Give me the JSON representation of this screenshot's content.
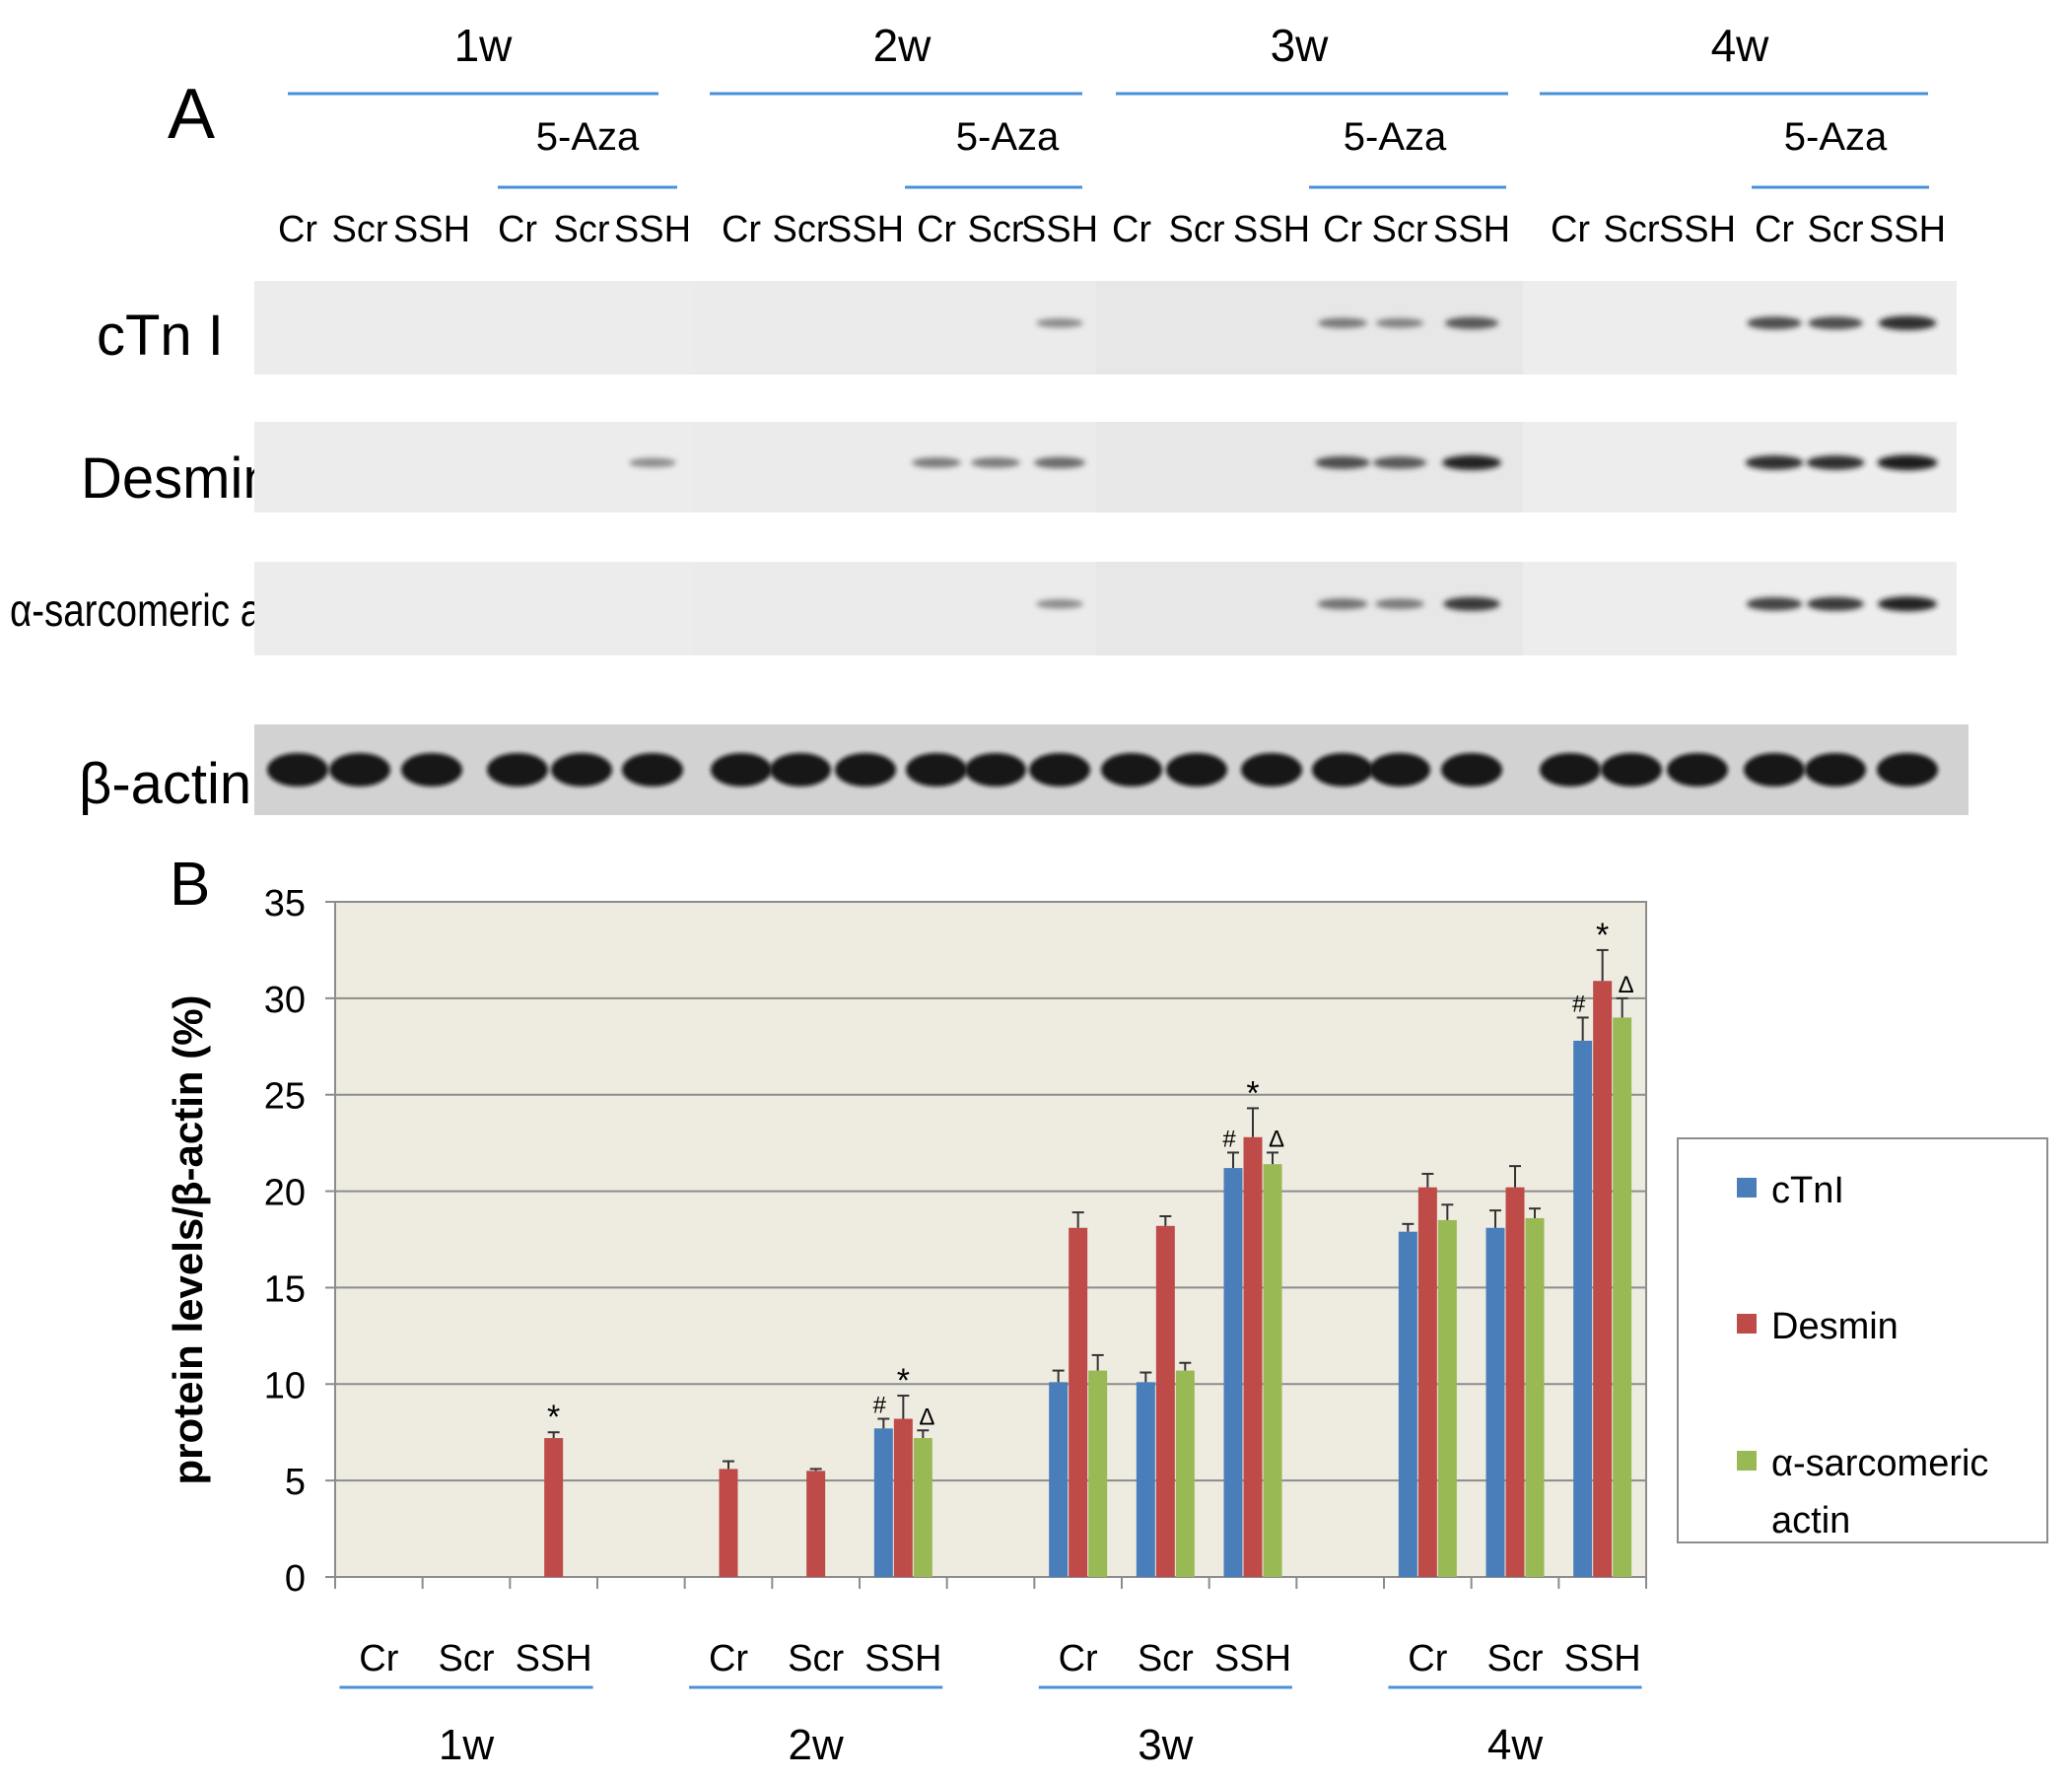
{
  "panel_a": {
    "label": "A",
    "weeks": [
      "1w",
      "2w",
      "3w",
      "4w"
    ],
    "treatment": "5-Aza",
    "lanes": [
      "Cr",
      "Scr",
      "SSH"
    ],
    "blots": [
      {
        "name": "cTn I",
        "intensity": [
          [
            0,
            0,
            0,
            0,
            0,
            0
          ],
          [
            0,
            0,
            0,
            0,
            0,
            0.35
          ],
          [
            0,
            0,
            0,
            0.45,
            0.4,
            0.65
          ],
          [
            0,
            0,
            0,
            0.7,
            0.7,
            0.85
          ]
        ]
      },
      {
        "name": "Desmin",
        "intensity": [
          [
            0,
            0,
            0,
            0,
            0,
            0.35
          ],
          [
            0,
            0,
            0,
            0.45,
            0.45,
            0.55
          ],
          [
            0,
            0,
            0,
            0.7,
            0.65,
            0.9
          ],
          [
            0,
            0,
            0,
            0.85,
            0.85,
            0.95
          ]
        ]
      },
      {
        "name": "α-sarcomeric actin",
        "intensity": [
          [
            0,
            0,
            0,
            0,
            0,
            0
          ],
          [
            0,
            0,
            0,
            0,
            0,
            0.35
          ],
          [
            0,
            0,
            0,
            0.5,
            0.45,
            0.8
          ],
          [
            0,
            0,
            0,
            0.75,
            0.8,
            0.9
          ]
        ]
      },
      {
        "name": "β-actin",
        "intensity": [
          [
            1,
            1,
            1,
            1,
            1,
            1
          ],
          [
            1,
            1,
            1,
            1,
            1,
            1
          ],
          [
            1,
            1,
            1,
            1,
            1,
            1
          ],
          [
            1,
            1,
            1,
            1,
            1,
            1
          ]
        ]
      }
    ]
  },
  "panel_b": {
    "label": "B",
    "legend": [
      "cTnI",
      "Desmin",
      "α-sarcomeric actin"
    ]
  },
  "chart_data": {
    "type": "bar",
    "title": "",
    "xlabel": "",
    "ylabel": "protein levels/β-actin (%)",
    "ylim": [
      0,
      35
    ],
    "yticks": [
      0,
      5,
      10,
      15,
      20,
      25,
      30,
      35
    ],
    "grid": true,
    "legend_position": "right",
    "groups": [
      "1w",
      "2w",
      "3w",
      "4w"
    ],
    "categories": [
      "Cr",
      "Scr",
      "SSH"
    ],
    "colors": {
      "cTnI": "#4a7ebb",
      "Desmin": "#be4b48",
      "α-sarcomeric actin": "#98b954"
    },
    "background": "#eeece1",
    "series": [
      {
        "name": "cTnI",
        "values": [
          [
            0,
            0,
            0
          ],
          [
            0,
            0,
            7.7
          ],
          [
            10.1,
            10.1,
            21.2
          ],
          [
            17.9,
            18.1,
            27.8
          ]
        ],
        "errors": [
          [
            0,
            0,
            0
          ],
          [
            0,
            0,
            0.5
          ],
          [
            0.6,
            0.5,
            0.8
          ],
          [
            0.4,
            0.9,
            1.2
          ]
        ]
      },
      {
        "name": "Desmin",
        "values": [
          [
            0,
            0,
            7.2
          ],
          [
            5.6,
            5.5,
            8.2
          ],
          [
            18.1,
            18.2,
            22.8
          ],
          [
            20.2,
            20.2,
            30.9
          ]
        ],
        "errors": [
          [
            0,
            0,
            0.3
          ],
          [
            0.4,
            0.1,
            1.2
          ],
          [
            0.8,
            0.5,
            1.5
          ],
          [
            0.7,
            1.1,
            1.6
          ]
        ]
      },
      {
        "name": "α-sarcomeric actin",
        "values": [
          [
            0,
            0,
            0
          ],
          [
            0,
            0,
            7.2
          ],
          [
            10.7,
            10.7,
            21.4
          ],
          [
            18.5,
            18.6,
            29.0
          ]
        ],
        "errors": [
          [
            0,
            0,
            0
          ],
          [
            0,
            0,
            0.4
          ],
          [
            0.8,
            0.4,
            0.6
          ],
          [
            0.8,
            0.5,
            1.0
          ]
        ]
      }
    ],
    "annotations": [
      {
        "group": "1w",
        "category": "SSH",
        "series": "Desmin",
        "text": "*"
      },
      {
        "group": "2w",
        "category": "SSH",
        "series": "cTnI",
        "text": "#"
      },
      {
        "group": "2w",
        "category": "SSH",
        "series": "Desmin",
        "text": "*"
      },
      {
        "group": "2w",
        "category": "SSH",
        "series": "α-sarcomeric actin",
        "text": "Δ"
      },
      {
        "group": "3w",
        "category": "SSH",
        "series": "cTnI",
        "text": "#"
      },
      {
        "group": "3w",
        "category": "SSH",
        "series": "Desmin",
        "text": "*"
      },
      {
        "group": "3w",
        "category": "SSH",
        "series": "α-sarcomeric actin",
        "text": "Δ"
      },
      {
        "group": "4w",
        "category": "SSH",
        "series": "cTnI",
        "text": "#"
      },
      {
        "group": "4w",
        "category": "SSH",
        "series": "Desmin",
        "text": "*"
      },
      {
        "group": "4w",
        "category": "SSH",
        "series": "α-sarcomeric actin",
        "text": "Δ"
      }
    ]
  }
}
